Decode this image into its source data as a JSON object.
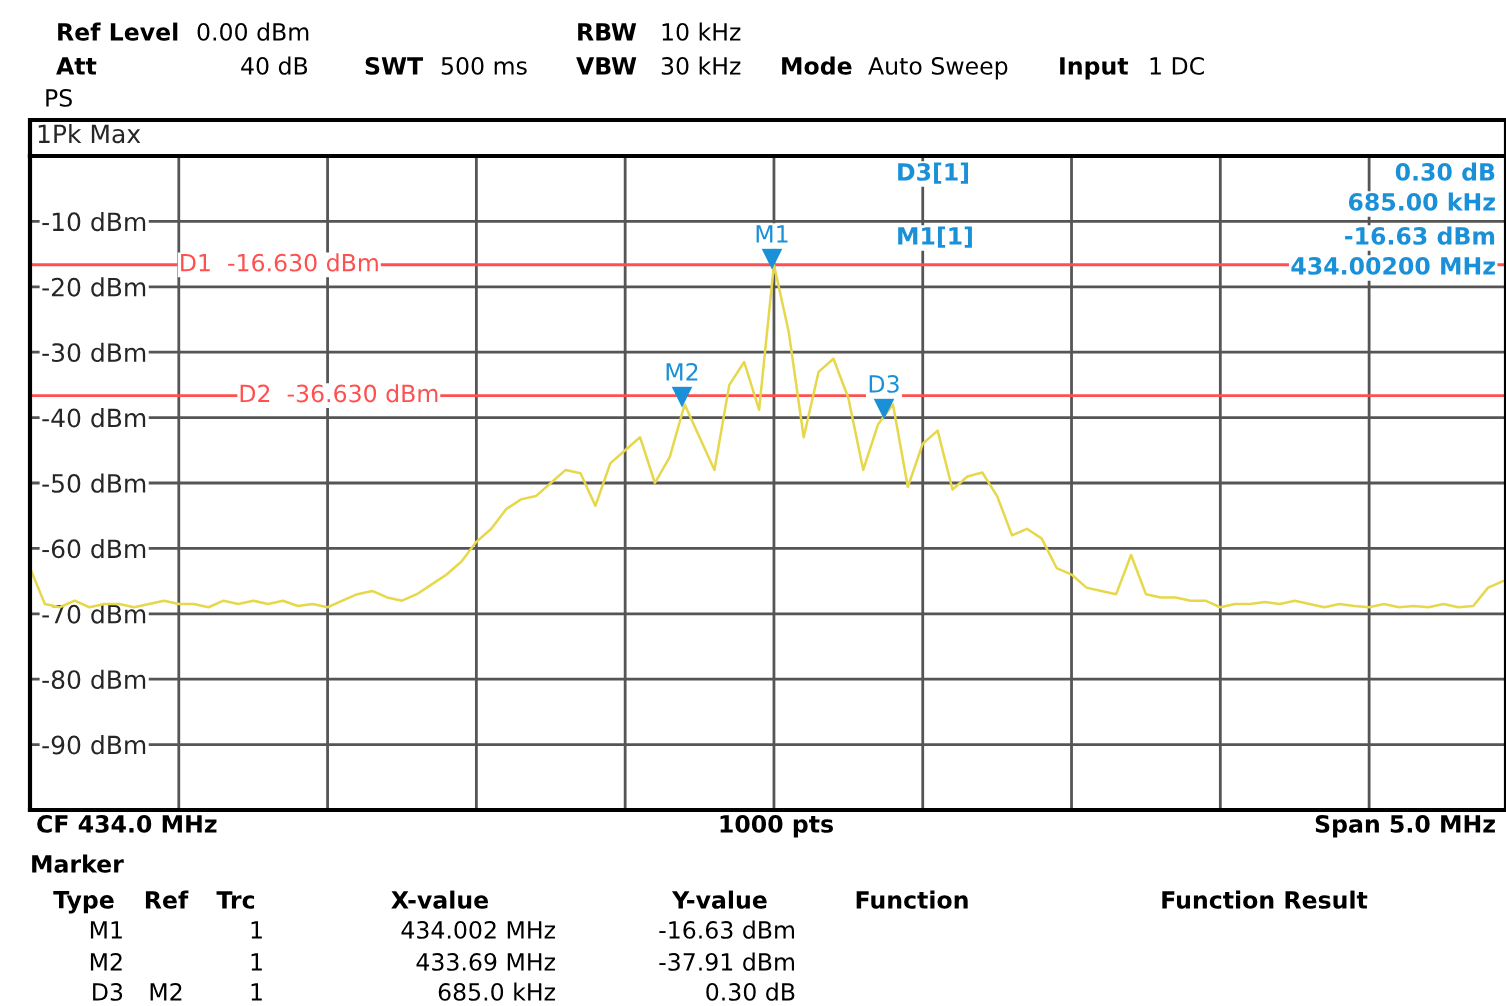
{
  "chart_data": {
    "type": "line",
    "title": "1Pk Max",
    "categories": [
      null,
      null,
      null,
      null,
      null,
      null,
      null,
      null,
      null,
      null,
      null,
      null,
      null,
      null,
      null,
      null,
      null,
      null,
      null,
      null,
      null,
      null,
      null,
      null,
      null,
      null,
      null,
      null,
      null,
      null,
      null,
      null,
      null,
      null,
      null,
      null,
      null,
      null,
      null,
      null,
      null,
      null,
      null,
      null,
      null,
      null,
      null,
      null,
      null,
      null,
      null,
      null,
      null,
      null,
      null,
      null,
      null,
      null,
      null,
      null,
      null,
      null,
      null,
      null,
      null,
      null,
      null,
      null,
      null,
      null,
      null,
      null,
      null,
      null,
      null,
      null,
      null,
      null,
      null,
      null,
      null,
      null,
      null,
      null,
      null,
      null,
      null,
      null,
      null,
      null,
      null,
      null,
      null,
      null,
      null,
      null,
      null,
      null,
      null,
      null
    ],
    "series": [
      {
        "color": "#e6d84a",
        "values": [
          -63,
          -68.5,
          -69,
          -68,
          -69,
          -68.5,
          -68.5,
          -69,
          -68.5,
          -68,
          -68.5,
          -68.5,
          -69,
          -68,
          -68.5,
          -68,
          -68.5,
          -68,
          -68.8,
          -68.5,
          -69,
          -68,
          -67,
          -66.5,
          -67.5,
          -68,
          -67,
          -65.5,
          -64,
          -62,
          -59,
          -57,
          -54,
          -52.5,
          -52,
          -50,
          -48,
          -48.5,
          -53.5,
          -47,
          -45,
          -43,
          -50,
          -46,
          -38,
          -43,
          -48,
          -35,
          -31.5,
          -38.8,
          -16.63,
          -27,
          -43,
          -33,
          -31,
          -37,
          -48,
          -41,
          -38,
          -50.6,
          -44,
          -42,
          -51,
          -49,
          -48.4,
          -52,
          -58,
          -57,
          -58.5,
          -63,
          -64,
          -66,
          -66.5,
          -67,
          -61,
          -67,
          -67.5,
          -67.5,
          -68,
          -68,
          -69,
          -68.5,
          -68.5,
          -68.2,
          -68.5,
          -68,
          -68.5,
          -69,
          -68.5,
          -68.8,
          -69,
          -68.5,
          -69,
          -68.8,
          -69,
          -68.5,
          -69,
          -68.8,
          -66,
          -65
        ]
      }
    ],
    "ylim": [
      -100,
      0
    ],
    "yticks": [
      {
        "value": -10,
        "label": "-10 dBm"
      },
      {
        "value": -20,
        "label": "-20 dBm"
      },
      {
        "value": -30,
        "label": "-30 dBm"
      },
      {
        "value": -40,
        "label": "-40 dBm"
      },
      {
        "value": -50,
        "label": "-50 dBm"
      },
      {
        "value": -60,
        "label": "-60 dBm"
      },
      {
        "value": -70,
        "label": "-70 dBm"
      },
      {
        "value": -80,
        "label": "-80 dBm"
      },
      {
        "value": -90,
        "label": "-90 dBm"
      }
    ],
    "tick_labels": "y",
    "grid": true,
    "legend": false,
    "ref_lines": [
      {
        "axis": "y",
        "value": -16.63,
        "label": "D1  -16.630 dBm",
        "color": "#ff5050"
      },
      {
        "axis": "y",
        "value": -36.63,
        "label": "D2  -36.630 dBm",
        "color": "#ff5050"
      }
    ],
    "annotations": [
      "Ref Level",
      "0.00 dBm",
      "RBW",
      "10 kHz",
      "Att",
      "40 dB",
      "SWT",
      "500 ms",
      "VBW",
      "30 kHz",
      "Mode",
      "Auto Sweep",
      "Input",
      "1 DC",
      "PS",
      "D3[1]",
      "0.30 dB",
      "685.00 kHz",
      "M1[1]",
      "-16.63 dBm",
      "434.00200 MHz",
      "CF 434.0 MHz",
      "1000 pts",
      "Span 5.0 MHz",
      "Marker",
      "Type",
      "Ref",
      "Trc",
      "X-value",
      "Y-value",
      "Function",
      "Function Result",
      "M1",
      "1",
      "434.002 MHz",
      "-16.63 dBm",
      "M2",
      "1",
      "433.69 MHz",
      "-37.91 dBm",
      "D3",
      "M2",
      "1",
      "685.0 kHz",
      "0.30 dB",
      "M1",
      "M2",
      "D3"
    ]
  }
}
